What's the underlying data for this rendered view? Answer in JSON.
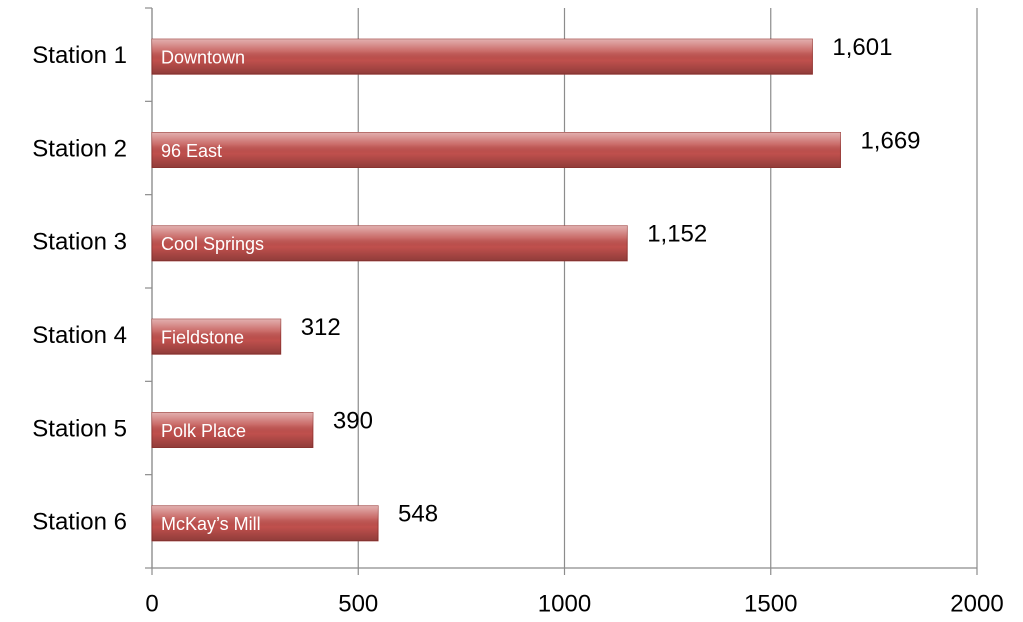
{
  "chart_data": {
    "type": "bar",
    "orientation": "horizontal",
    "categories": [
      "Station 1",
      "Station 2",
      "Station 3",
      "Station 4",
      "Station 5",
      "Station 6"
    ],
    "values": [
      1601,
      1669,
      1152,
      312,
      390,
      548
    ],
    "value_labels": [
      "1,601",
      "1,669",
      "1,152",
      "312",
      "390",
      "548"
    ],
    "bar_labels": [
      "Downtown",
      "96 East",
      "Cool Springs",
      "Fieldstone",
      "Polk Place",
      "McKay’s Mill"
    ],
    "color": "#c0504d",
    "xlim": [
      0,
      2000
    ],
    "xticks": [
      0,
      500,
      1000,
      1500,
      2000
    ],
    "grid": true
  }
}
